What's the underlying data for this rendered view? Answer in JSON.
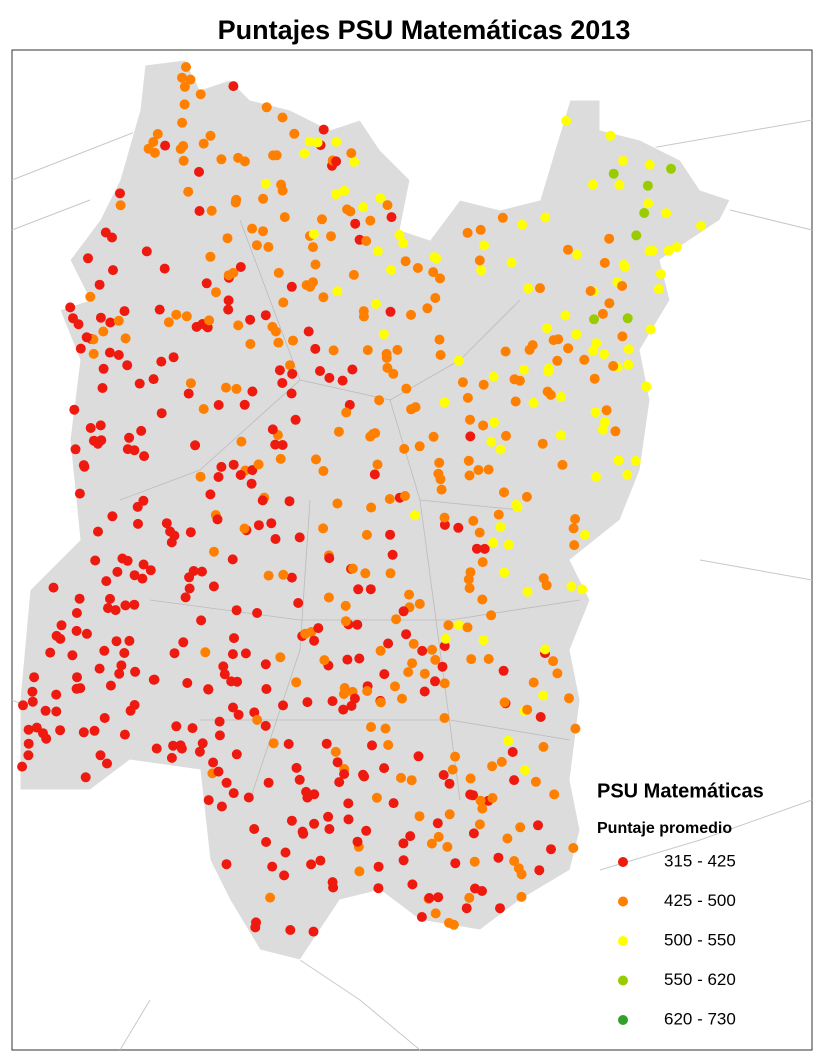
{
  "title": "Puntajes PSU Matemáticas 2013",
  "legend": {
    "title": "PSU Matemáticas",
    "subtitle": "Puntaje promedio",
    "items": [
      {
        "label": "315 - 425",
        "color": "#ee1a0f"
      },
      {
        "label": "425 - 500",
        "color": "#ff7f00"
      },
      {
        "label": "500 - 550",
        "color": "#ffff00"
      },
      {
        "label": "550 - 620",
        "color": "#99cc00"
      },
      {
        "label": "620 - 730",
        "color": "#33a02c"
      }
    ]
  }
}
